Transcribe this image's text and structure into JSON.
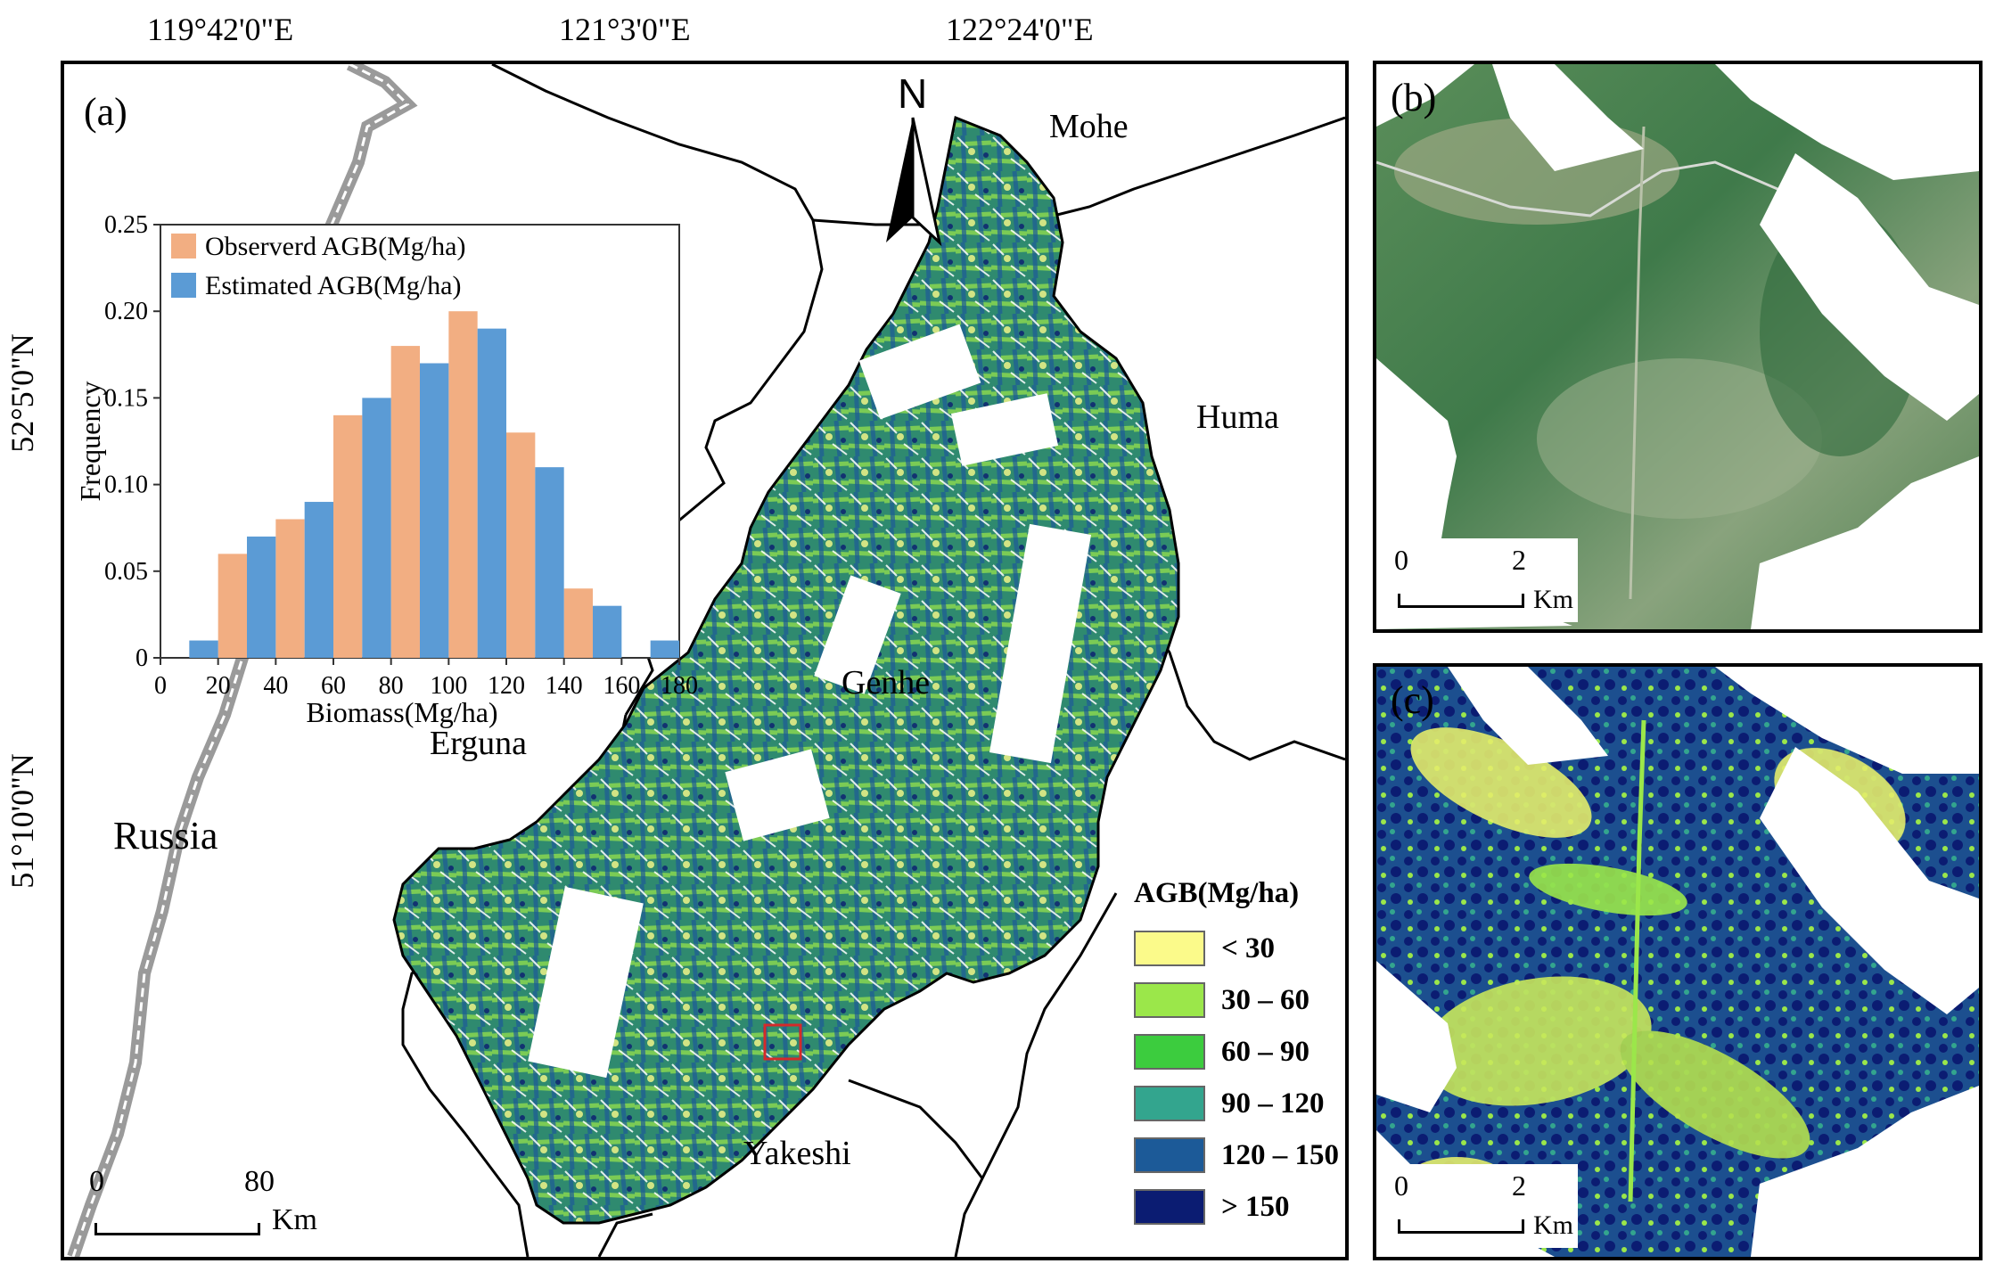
{
  "map_a": {
    "panel_label": "(a)",
    "top_ticks": [
      "119°42'0\"E",
      "121°3'0\"E",
      "122°24'0\"E"
    ],
    "left_ticks": [
      "52°5'0\"N",
      "51°10'0\"N"
    ],
    "north_label": "N",
    "places": {
      "mohe": "Mohe",
      "huma": "Huma",
      "genhe": "Genhe",
      "erguna": "Erguna",
      "russia": "Russia",
      "yakeshi": "Yakeshi"
    },
    "scale": {
      "zero": "0",
      "max": "80",
      "unit": "Km"
    }
  },
  "chart_data": {
    "type": "bar",
    "categories": [
      "10-20",
      "20-30",
      "30-40",
      "40-50",
      "50-60",
      "60-70",
      "70-80",
      "80-90",
      "90-100",
      "100-110",
      "110-120",
      "120-130",
      "130-140",
      "140-150",
      "150-160",
      "160-170",
      "170-180"
    ],
    "series": [
      {
        "name": "Observerd AGB(Mg/ha)",
        "color": "#f2ae82",
        "values": [
          0,
          0.06,
          0,
          0.08,
          0,
          0.14,
          0,
          0.18,
          0,
          0.2,
          0,
          0.13,
          0,
          0.04,
          0,
          0,
          0
        ]
      },
      {
        "name": "Estimated AGB(Mg/ha)",
        "color": "#5b9bd5",
        "values": [
          0.01,
          0,
          0.07,
          0,
          0.09,
          0,
          0.15,
          0,
          0.17,
          0,
          0.19,
          0,
          0.11,
          0,
          0.03,
          0,
          0.01
        ]
      }
    ],
    "xlabel": "Biomass(Mg/ha)",
    "ylabel": "Frequency",
    "xlim": [
      0,
      180
    ],
    "ylim": [
      0,
      0.25
    ],
    "xticks": [
      "0",
      "20",
      "40",
      "60",
      "80",
      "100",
      "120",
      "140",
      "160",
      "180"
    ],
    "yticks": [
      "0",
      "0.05",
      "0.10",
      "0.15",
      "0.20",
      "0.25"
    ],
    "legend_position": "top-left"
  },
  "legend": {
    "title": "AGB(Mg/ha)",
    "classes": [
      {
        "label": "< 30",
        "color": "#fbfa8a"
      },
      {
        "label": "30 – 60",
        "color": "#9be74a"
      },
      {
        "label": "60 – 90",
        "color": "#3ccc3e"
      },
      {
        "label": "90 – 120",
        "color": "#33a58e"
      },
      {
        "label": "120 – 150",
        "color": "#1c5a98"
      },
      {
        "label": "> 150",
        "color": "#0b1c72"
      }
    ]
  },
  "panel_b": {
    "label": "(b)",
    "scale": {
      "zero": "0",
      "max": "2",
      "unit": "Km"
    }
  },
  "panel_c": {
    "label": "(c)",
    "scale": {
      "zero": "0",
      "max": "2",
      "unit": "Km"
    }
  }
}
